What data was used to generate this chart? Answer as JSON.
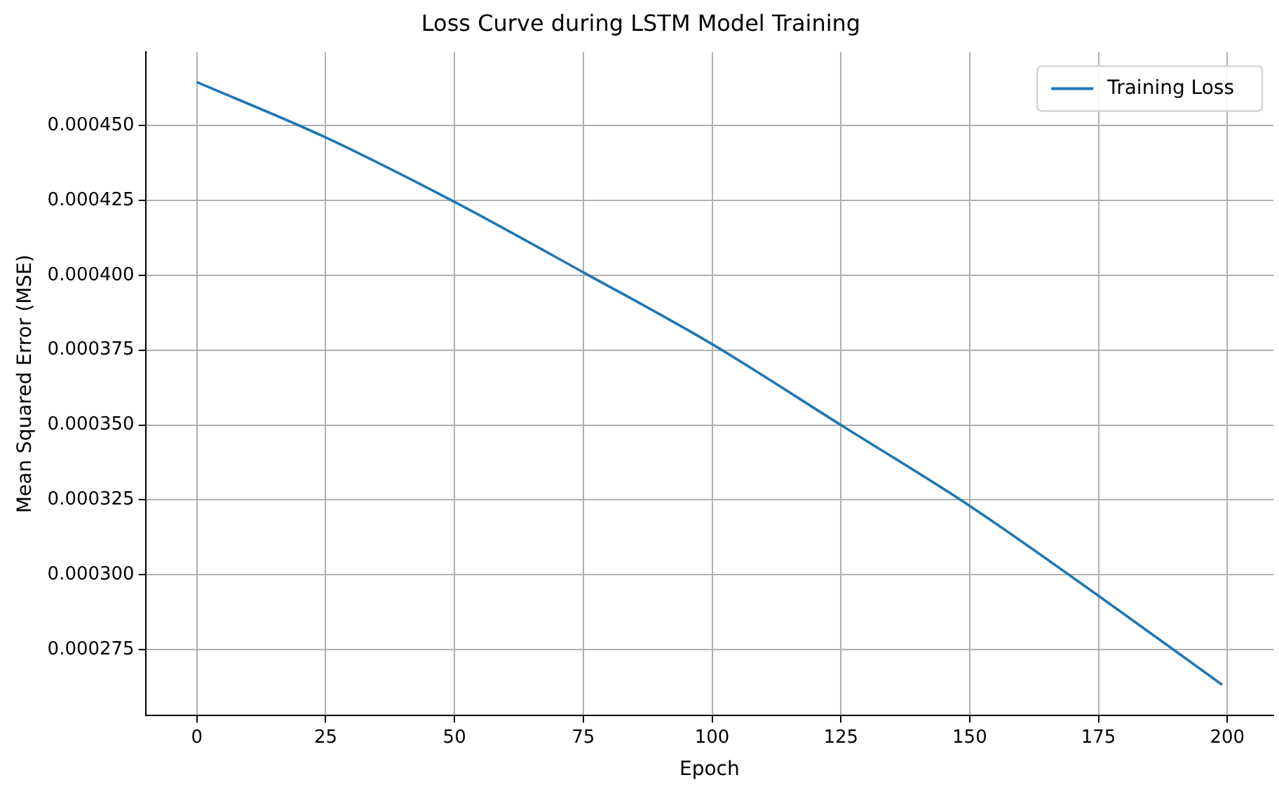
{
  "chart_data": {
    "type": "line",
    "title": "Loss Curve during LSTM Model Training",
    "xlabel": "Epoch",
    "ylabel": "Mean Squared Error (MSE)",
    "x": [
      0,
      25,
      50,
      75,
      100,
      125,
      150,
      175,
      199
    ],
    "series": [
      {
        "name": "Training Loss",
        "color": "#1f77b4",
        "values": [
          0.0004645,
          0.000446,
          0.0004245,
          0.000401,
          0.000377,
          0.00035,
          0.000323,
          0.000293,
          0.0002633
        ]
      }
    ],
    "xlim": [
      -9.95,
      208.95
    ],
    "xticks": [
      0,
      25,
      50,
      75,
      100,
      125,
      150,
      175,
      200
    ],
    "ylim": [
      0.000253,
      0.0004745
    ],
    "yticks": [
      {
        "value": 0.000275,
        "label": "0.000275"
      },
      {
        "value": 0.0003,
        "label": "0.000300"
      },
      {
        "value": 0.000325,
        "label": "0.000325"
      },
      {
        "value": 0.00035,
        "label": "0.000350"
      },
      {
        "value": 0.000375,
        "label": "0.000375"
      },
      {
        "value": 0.0004,
        "label": "0.000400"
      },
      {
        "value": 0.000425,
        "label": "0.000425"
      },
      {
        "value": 0.00045,
        "label": "0.000450"
      }
    ],
    "grid": true,
    "legend": "top right",
    "marker": "none",
    "line_style": "solid"
  }
}
